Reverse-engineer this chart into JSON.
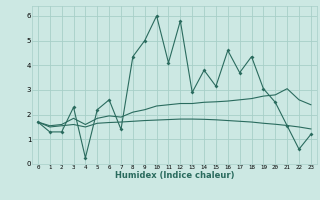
{
  "xlabel": "Humidex (Indice chaleur)",
  "x": [
    0,
    1,
    2,
    3,
    4,
    5,
    6,
    7,
    8,
    9,
    10,
    11,
    12,
    13,
    14,
    15,
    16,
    17,
    18,
    19,
    20,
    21,
    22,
    23
  ],
  "y_main": [
    1.7,
    1.3,
    1.3,
    2.3,
    0.25,
    2.2,
    2.6,
    1.4,
    4.35,
    5.0,
    6.0,
    4.1,
    5.8,
    2.9,
    3.8,
    3.15,
    4.6,
    3.7,
    4.35,
    3.05,
    2.5,
    1.55,
    0.6,
    1.2
  ],
  "y_upper": [
    1.7,
    1.55,
    1.6,
    1.85,
    1.6,
    1.85,
    1.95,
    1.9,
    2.1,
    2.2,
    2.35,
    2.4,
    2.45,
    2.45,
    2.5,
    2.52,
    2.55,
    2.6,
    2.65,
    2.75,
    2.8,
    3.05,
    2.6,
    2.4
  ],
  "y_lower": [
    1.7,
    1.5,
    1.55,
    1.6,
    1.5,
    1.65,
    1.68,
    1.7,
    1.73,
    1.76,
    1.78,
    1.8,
    1.82,
    1.82,
    1.81,
    1.79,
    1.76,
    1.73,
    1.7,
    1.65,
    1.61,
    1.56,
    1.5,
    1.42
  ],
  "line_color": "#2a6b5e",
  "bg_color": "#cce8e3",
  "grid_color": "#a8cfc8",
  "xlim": [
    -0.5,
    23.5
  ],
  "ylim": [
    0,
    6.4
  ],
  "xticks": [
    0,
    1,
    2,
    3,
    4,
    5,
    6,
    7,
    8,
    9,
    10,
    11,
    12,
    13,
    14,
    15,
    16,
    17,
    18,
    19,
    20,
    21,
    22,
    23
  ],
  "yticks": [
    0,
    1,
    2,
    3,
    4,
    5,
    6
  ]
}
